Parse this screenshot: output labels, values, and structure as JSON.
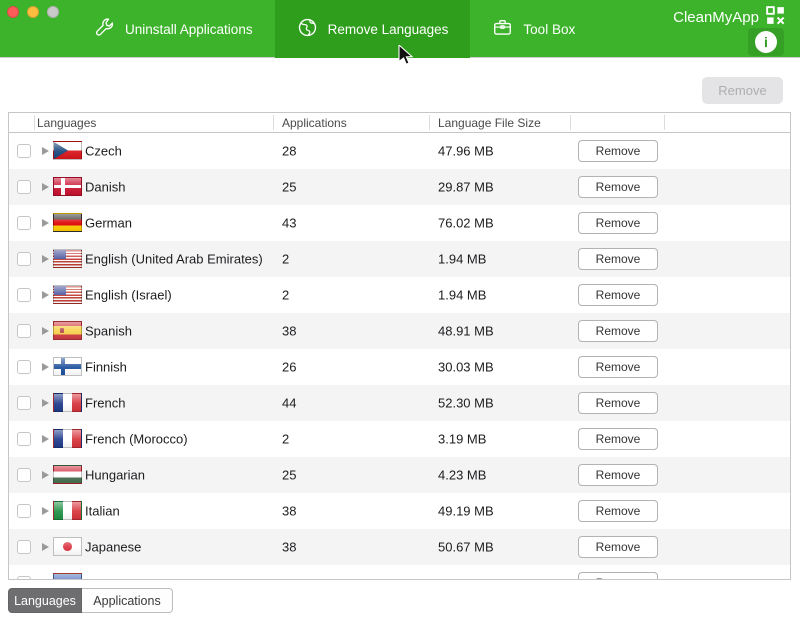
{
  "colors": {
    "header_green": "#3cb32a",
    "active_tab_green": "#2f9e1c",
    "row_alt": "#f4f4f5"
  },
  "window": {
    "traffic_lights": [
      "close",
      "minimize",
      "zoom"
    ]
  },
  "header": {
    "brand": "CleanMyApp",
    "tabs": [
      {
        "label": "Uninstall Applications",
        "icon": "wrench-icon",
        "active": false
      },
      {
        "label": "Remove Languages",
        "icon": "globe-icon",
        "active": true
      },
      {
        "label": "Tool Box",
        "icon": "briefcase-icon",
        "active": false
      }
    ]
  },
  "toolbar": {
    "remove_label": "Remove",
    "remove_enabled": false
  },
  "table": {
    "columns": [
      "Languages",
      "Applications",
      "Language File Size"
    ],
    "row_action_label": "Remove",
    "rows": [
      {
        "language": "Czech",
        "flag": "cz",
        "applications": "28",
        "file_size": "47.96 MB"
      },
      {
        "language": "Danish",
        "flag": "dk",
        "applications": "25",
        "file_size": "29.87 MB"
      },
      {
        "language": "German",
        "flag": "de",
        "applications": "43",
        "file_size": "76.02 MB"
      },
      {
        "language": "English (United Arab Emirates)",
        "flag": "us",
        "applications": "2",
        "file_size": "1.94 MB"
      },
      {
        "language": "English (Israel)",
        "flag": "us",
        "applications": "2",
        "file_size": "1.94 MB"
      },
      {
        "language": "Spanish",
        "flag": "es",
        "applications": "38",
        "file_size": "48.91 MB"
      },
      {
        "language": "Finnish",
        "flag": "fi",
        "applications": "26",
        "file_size": "30.03 MB"
      },
      {
        "language": "French",
        "flag": "fr",
        "applications": "44",
        "file_size": "52.30 MB"
      },
      {
        "language": "French (Morocco)",
        "flag": "fr",
        "applications": "2",
        "file_size": "3.19 MB"
      },
      {
        "language": "Hungarian",
        "flag": "hu",
        "applications": "25",
        "file_size": "4.23 MB"
      },
      {
        "language": "Italian",
        "flag": "it",
        "applications": "38",
        "file_size": "49.19 MB"
      },
      {
        "language": "Japanese",
        "flag": "jp",
        "applications": "38",
        "file_size": "50.67 MB"
      },
      {
        "language": "",
        "flag": "partial",
        "applications": "",
        "file_size": ""
      }
    ]
  },
  "footer": {
    "segments": [
      {
        "label": "Languages",
        "selected": true
      },
      {
        "label": "Applications",
        "selected": false
      }
    ]
  }
}
